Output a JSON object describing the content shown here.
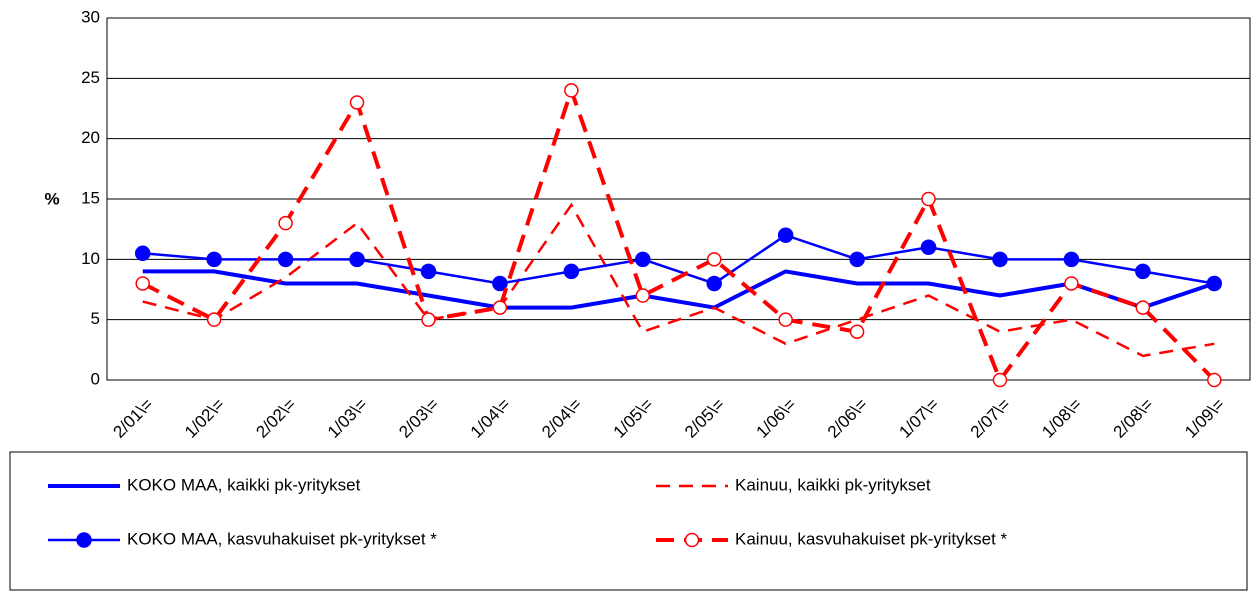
{
  "chart_data": {
    "type": "line",
    "y_label": "%",
    "categories": [
      "2/01\\=",
      "1/02\\=",
      "2/02\\=",
      "1/03\\=",
      "2/03\\=",
      "1/04\\=",
      "2/04\\=",
      "1/05\\=",
      "2/05\\=",
      "1/06\\=",
      "2/06\\=",
      "1/07\\=",
      "2/07\\=",
      "1/08\\=",
      "2/08\\=",
      "1/09\\="
    ],
    "series": [
      {
        "name": "KOKO MAA, kaikki pk-yritykset",
        "color": "#0000ff",
        "dashed": false,
        "marker": "none",
        "values": [
          9,
          9,
          8,
          8,
          7,
          6,
          6,
          7,
          6,
          9,
          8,
          8,
          7,
          8,
          6,
          8
        ]
      },
      {
        "name": "Kainuu, kaikki pk-yritykset",
        "color": "#ff0000",
        "dashed": true,
        "marker": "none",
        "values": [
          6.5,
          5,
          8.5,
          13,
          5,
          6,
          14.5,
          4,
          6,
          3,
          5,
          7,
          4,
          5,
          2,
          3
        ]
      },
      {
        "name": "KOKO MAA, kasvuhakuiset pk-yritykset *",
        "color": "#0000ff",
        "dashed": false,
        "marker": "filled",
        "values": [
          10.5,
          10,
          10,
          10,
          9,
          8,
          9,
          10,
          8,
          12,
          10,
          11,
          10,
          10,
          9,
          8
        ]
      },
      {
        "name": "Kainuu, kasvuhakuiset pk-yritykset *",
        "color": "#ff0000",
        "dashed": true,
        "marker": "open",
        "values": [
          8,
          5,
          13,
          23,
          5,
          6,
          24,
          7,
          10,
          5,
          4,
          15,
          0,
          8,
          6,
          0
        ]
      }
    ],
    "ylim": [
      0,
      30
    ],
    "yticks": [
      0,
      5,
      10,
      15,
      20,
      25,
      30
    ],
    "grid": true
  }
}
